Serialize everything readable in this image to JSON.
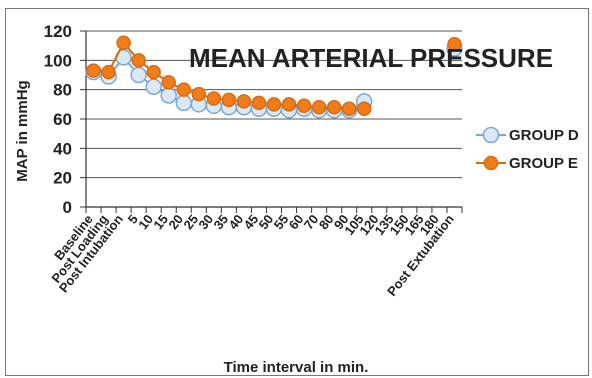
{
  "chart_data": {
    "type": "line",
    "title": "MEAN ARTERIAL PRESSURE",
    "xlabel": "Time interval in min.",
    "ylabel": "MAP in mmHg",
    "ylim": [
      0,
      120
    ],
    "yticks": [
      0,
      20,
      40,
      60,
      80,
      100,
      120
    ],
    "grid": true,
    "legend_position": "right",
    "categories": [
      "Baseline",
      "Post Loading",
      "Post Intubation",
      "5",
      "10",
      "15",
      "20",
      "25",
      "30",
      "35",
      "40",
      "45",
      "50",
      "55",
      "60",
      "70",
      "80",
      "90",
      "105",
      "120",
      "135",
      "150",
      "165",
      "180",
      "Post Extubation"
    ],
    "series": [
      {
        "name": "GROUP D",
        "color": "#dbe9f6",
        "edge_color": "#7ba7d3",
        "values": [
          92,
          89,
          102,
          90,
          82,
          76,
          71,
          70,
          69,
          68,
          68,
          67,
          67,
          66,
          67,
          66,
          66,
          66,
          72,
          null,
          null,
          null,
          null,
          null,
          108
        ]
      },
      {
        "name": "GROUP E",
        "color": "#f07d1a",
        "edge_color": "#d96a0e",
        "values": [
          93,
          92,
          112,
          100,
          92,
          85,
          80,
          77,
          74,
          73,
          72,
          71,
          70,
          70,
          69,
          68,
          68,
          67,
          67,
          null,
          null,
          null,
          null,
          null,
          111
        ]
      }
    ]
  }
}
